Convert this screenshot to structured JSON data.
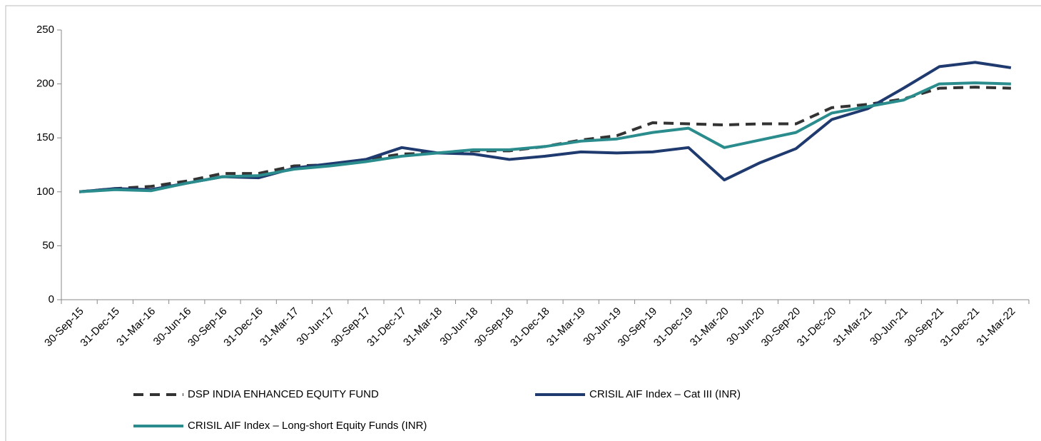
{
  "chart_data": {
    "type": "line",
    "categories": [
      "30-Sep-15",
      "31-Dec-15",
      "31-Mar-16",
      "30-Jun-16",
      "30-Sep-16",
      "31-Dec-16",
      "31-Mar-17",
      "30-Jun-17",
      "30-Sep-17",
      "31-Dec-17",
      "31-Mar-18",
      "30-Jun-18",
      "30-Sep-18",
      "31-Dec-18",
      "31-Mar-19",
      "30-Jun-19",
      "30-Sep-19",
      "31-Dec-19",
      "31-Mar-20",
      "30-Jun-20",
      "30-Sep-20",
      "31-Dec-20",
      "31-Mar-21",
      "30-Jun-21",
      "30-Sep-21",
      "31-Dec-21",
      "31-Mar-22"
    ],
    "series": [
      {
        "name": "DSP INDIA ENHANCED EQUITY FUND",
        "color": "#333333",
        "dashed": true,
        "values": [
          100,
          103,
          105,
          110,
          117,
          117,
          124,
          125,
          130,
          135,
          136,
          138,
          138,
          142,
          148,
          152,
          164,
          163,
          162,
          163,
          163,
          178,
          181,
          186,
          196,
          197,
          196
        ]
      },
      {
        "name": "CRISIL AIF Index – Cat III (INR)",
        "color": "#1f3a6e",
        "dashed": false,
        "values": [
          100,
          103,
          102,
          108,
          114,
          113,
          122,
          126,
          130,
          141,
          136,
          135,
          130,
          133,
          137,
          136,
          137,
          141,
          111,
          127,
          140,
          167,
          177,
          196,
          216,
          220,
          215
        ]
      },
      {
        "name": "CRISIL AIF Index – Long-short Equity Funds (INR)",
        "color": "#2a8c8c",
        "dashed": false,
        "values": [
          100,
          102,
          101,
          108,
          114,
          115,
          121,
          124,
          128,
          133,
          136,
          139,
          139,
          142,
          147,
          149,
          155,
          159,
          141,
          148,
          155,
          173,
          179,
          185,
          200,
          201,
          200
        ]
      }
    ],
    "ylim": [
      0,
      250
    ],
    "yticks": [
      0,
      50,
      100,
      150,
      200,
      250
    ],
    "grid": false
  }
}
